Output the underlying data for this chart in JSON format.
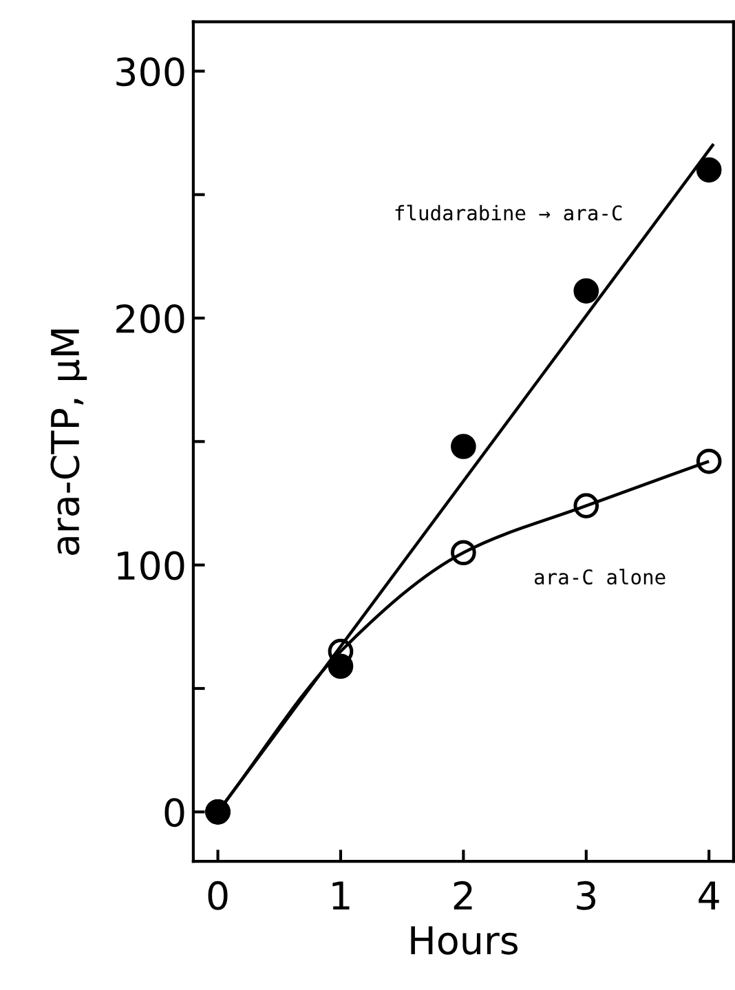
{
  "chart_data": {
    "type": "scatter",
    "xlabel": "Hours",
    "ylabel": "ara-CTP, µM",
    "xlim": [
      -0.2,
      4.2
    ],
    "ylim": [
      -20,
      320
    ],
    "xticks": [
      0,
      1,
      2,
      3,
      4
    ],
    "yticks": [
      0,
      {
        "value": 50,
        "label": null
      },
      100,
      {
        "value": 150,
        "label": null
      },
      200,
      {
        "value": 250,
        "label": null
      },
      300
    ],
    "grid": false,
    "legend": false,
    "series": [
      {
        "type": "line",
        "name": "fludarabine → ara-C",
        "color": "#000000",
        "x": [
          0,
          4.03
        ],
        "values": [
          0,
          270
        ]
      },
      {
        "type": "line",
        "name": "ara-C alone",
        "color": "#000000",
        "x": [
          0,
          1,
          2,
          3,
          4
        ],
        "values": [
          0,
          65,
          105,
          124,
          142
        ],
        "marker": "circle"
      },
      {
        "color": "#000000",
        "x": [
          0,
          1,
          2,
          3,
          4
        ],
        "values": [
          0,
          59,
          148,
          211,
          260
        ],
        "marker": "circle"
      }
    ]
  }
}
